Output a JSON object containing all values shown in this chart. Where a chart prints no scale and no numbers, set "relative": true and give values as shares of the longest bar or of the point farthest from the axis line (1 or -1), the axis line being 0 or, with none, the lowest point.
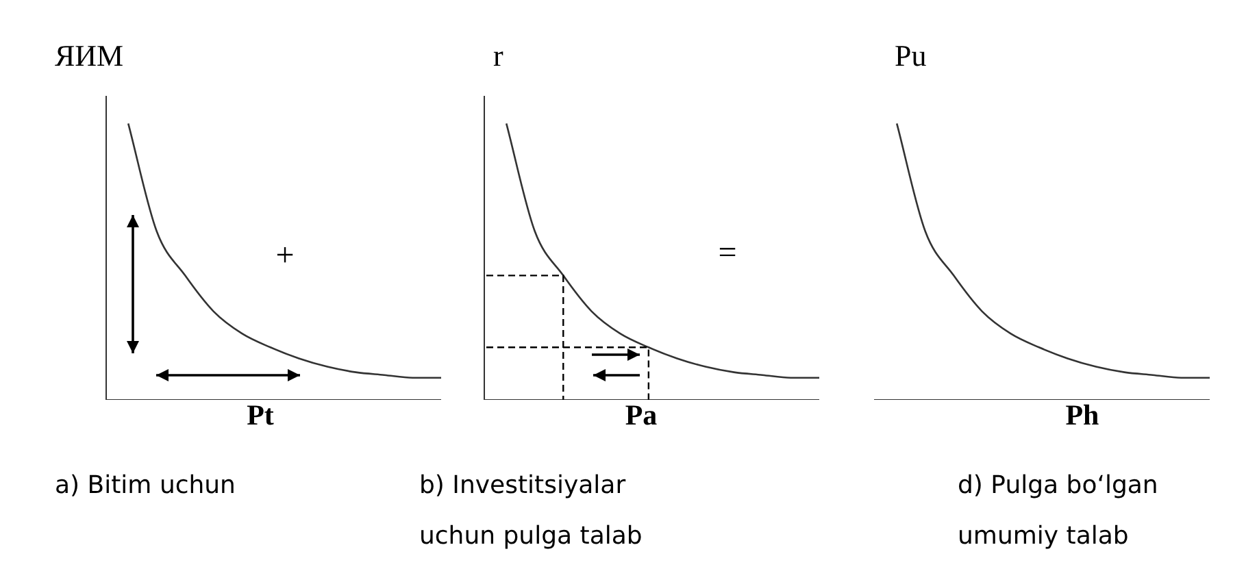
{
  "chart_data": [
    {
      "type": "line",
      "relative": true,
      "marker": "none",
      "line_style": "solid",
      "ylabel": "ЯИМ",
      "xlabel": "Pt",
      "annotations": [
        "a) Bitim uchun",
        "+"
      ],
      "categories": [
        null,
        null,
        null,
        null,
        null,
        null,
        null,
        null,
        null,
        null,
        null,
        null
      ],
      "series": [
        {
          "color": "#333333",
          "values": [
            1,
            0.61,
            0.45,
            0.32,
            0.24,
            0.19,
            0.15,
            0.12,
            0.1,
            0.09,
            0.08,
            0.08
          ]
        }
      ]
    },
    {
      "type": "line",
      "relative": true,
      "marker": "none",
      "line_style": "solid",
      "ylabel": "r",
      "xlabel": "Pa",
      "annotations": [
        "b) Investitsiyalar\nuchun pulga talab",
        "="
      ],
      "categories": [
        null,
        null,
        null,
        null,
        null,
        null,
        null,
        null,
        null,
        null,
        null,
        null
      ],
      "series": [
        {
          "color": "#333333",
          "values": [
            1,
            0.61,
            0.45,
            0.32,
            0.24,
            0.19,
            0.15,
            0.12,
            0.1,
            0.09,
            0.08,
            0.08
          ]
        }
      ]
    },
    {
      "type": "line",
      "relative": true,
      "marker": "none",
      "line_style": "solid",
      "ylabel": "Pu",
      "xlabel": "Ph",
      "annotations": [
        "d) Pulga bo‘lgan\numumiy talab"
      ],
      "categories": [
        null,
        null,
        null,
        null,
        null,
        null,
        null,
        null,
        null,
        null,
        null,
        null
      ],
      "series": [
        {
          "color": "#333333",
          "values": [
            1,
            0.61,
            0.45,
            0.32,
            0.24,
            0.19,
            0.15,
            0.12,
            0.1,
            0.09,
            0.08,
            0.08
          ]
        }
      ]
    }
  ]
}
